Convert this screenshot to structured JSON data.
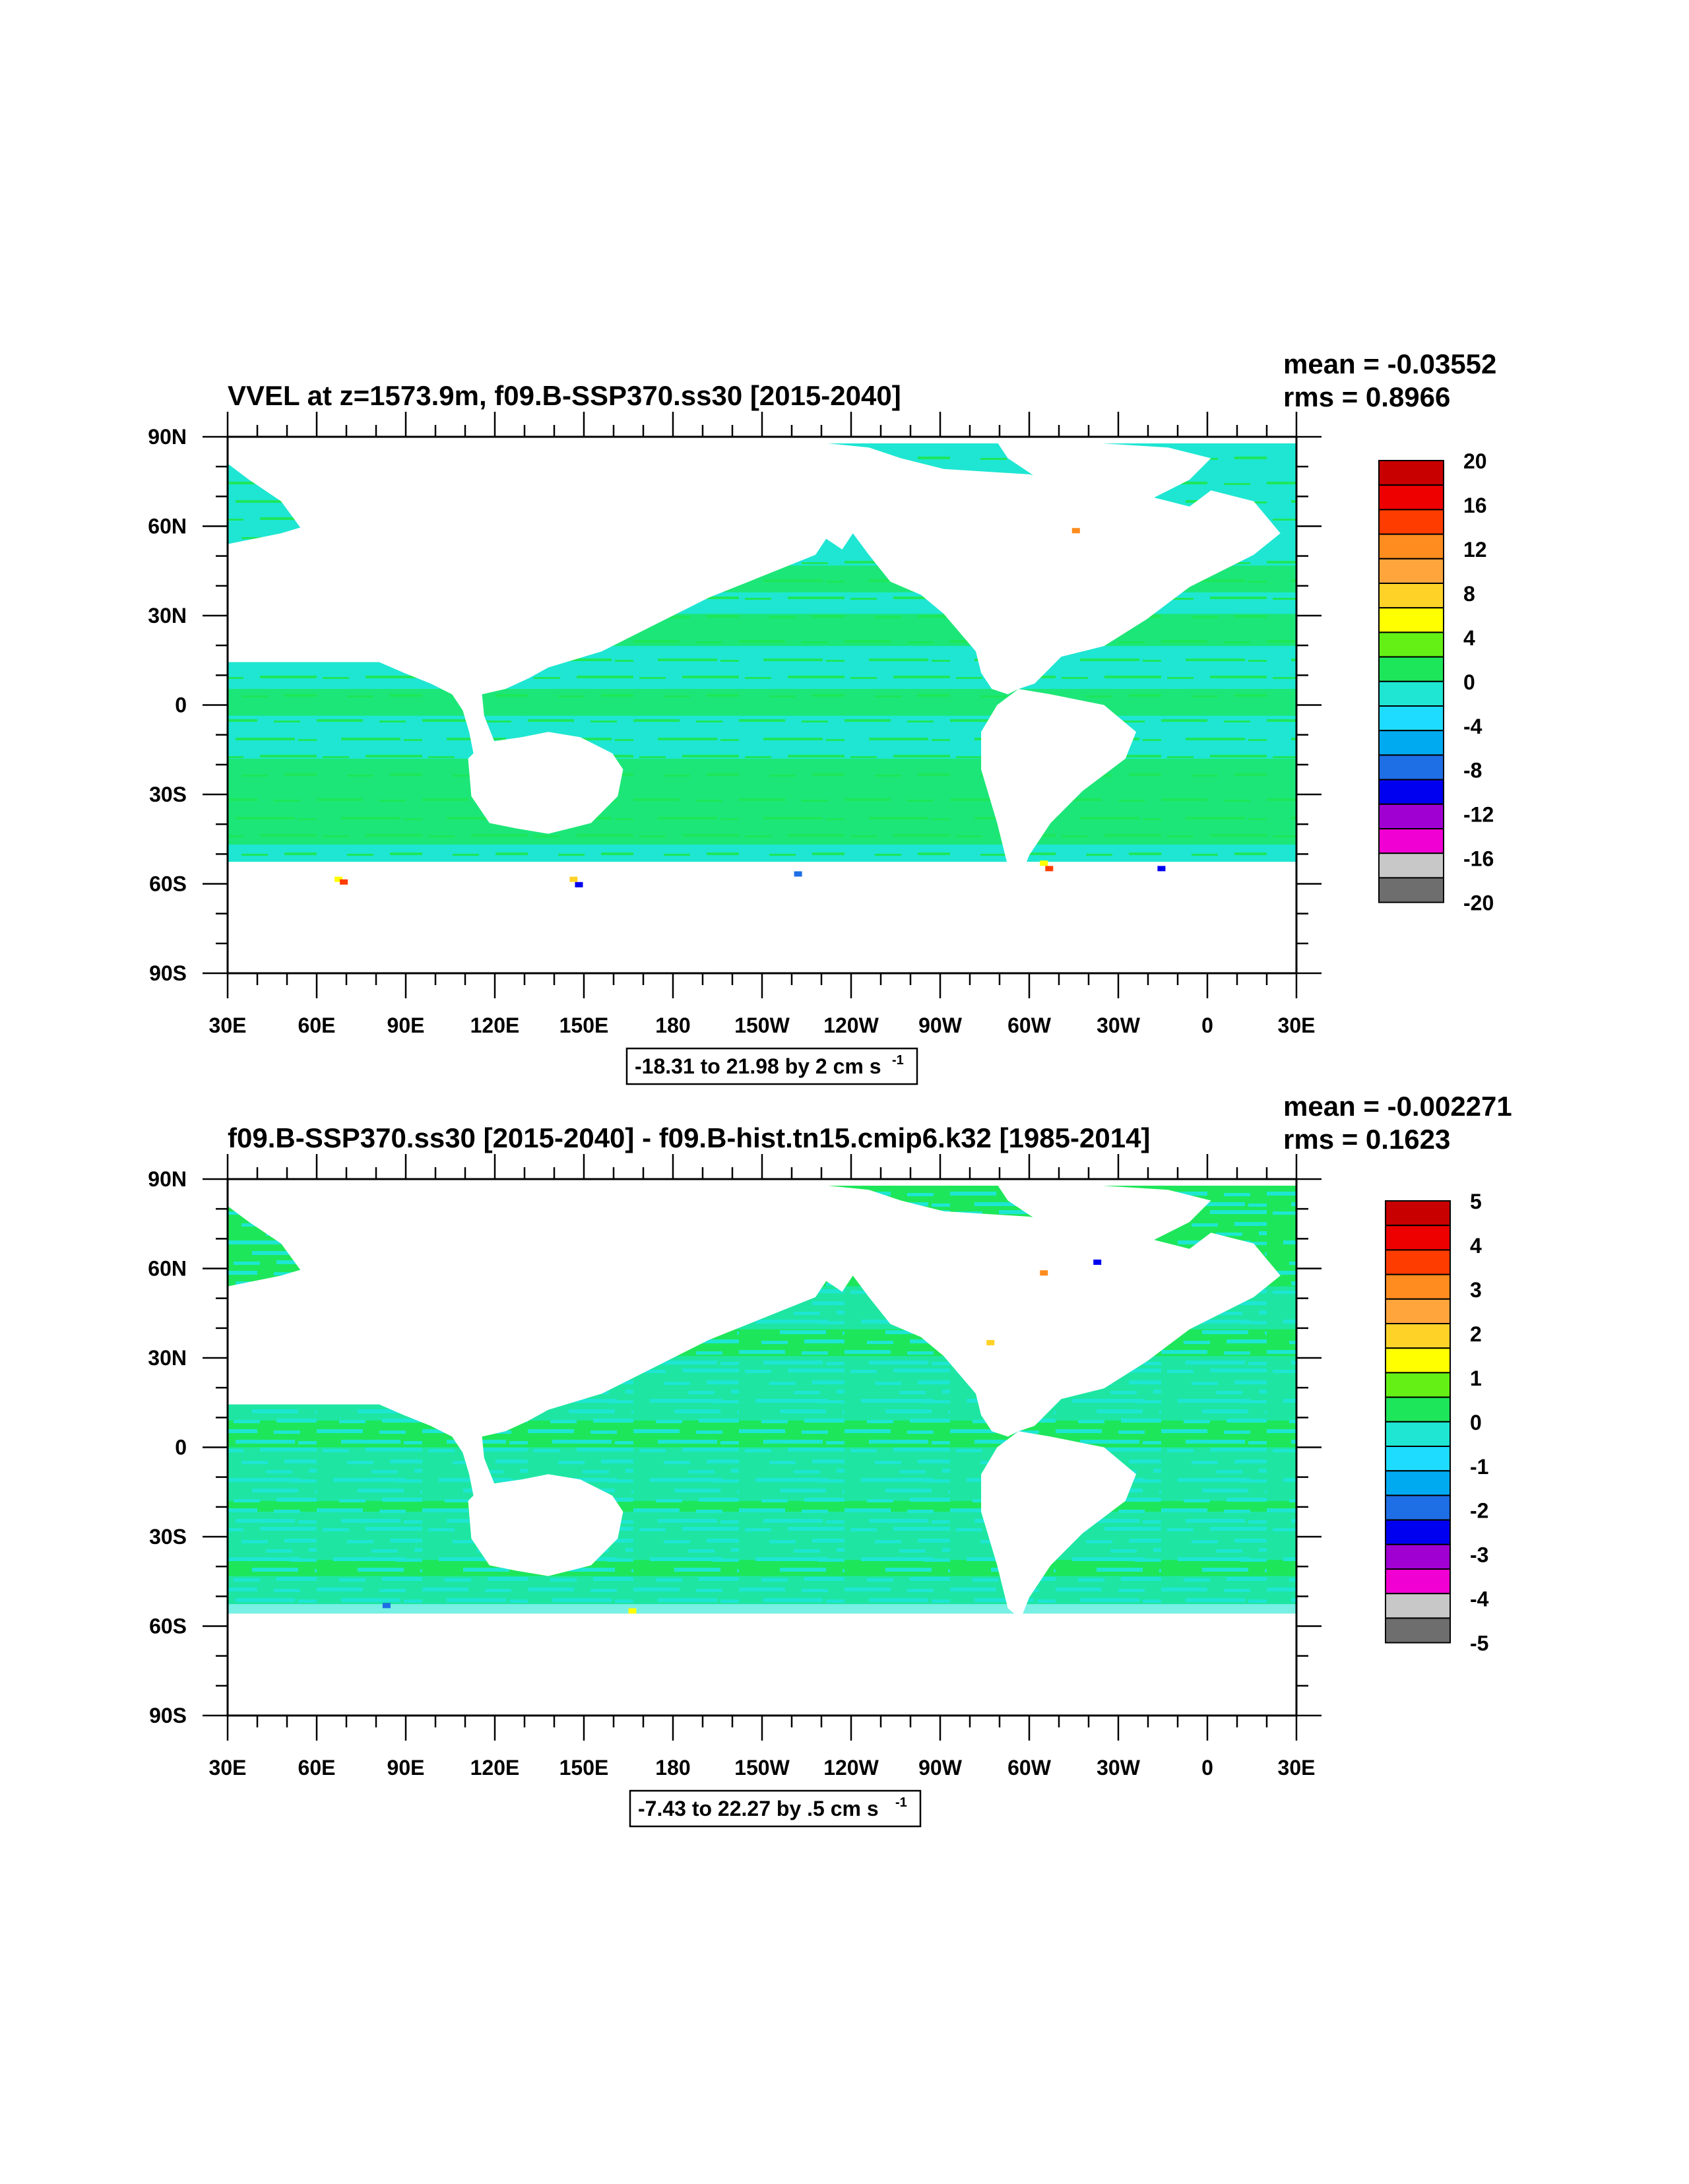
{
  "land_color": "#ffffff",
  "panels": [
    {
      "title": "VVEL at z=1573.9m, f09.B-SSP370.ss30 [2015-2040]",
      "mean_label": "mean = -0.03552",
      "rms_label": "rms = 0.8966",
      "range_text": "-18.31 to 21.98 by 2 cm s",
      "range_sup": "-1",
      "dominant_color": "#1ee6d2",
      "secondary_color": "#1ee65a",
      "colorbar": {
        "labels": [
          "20",
          "16",
          "12",
          "8",
          "4",
          "0",
          "-4",
          "-8",
          "-12",
          "-16",
          "-20"
        ]
      }
    },
    {
      "title": "f09.B-SSP370.ss30 [2015-2040] - f09.B-hist.tn15.cmip6.k32 [1985-2014]",
      "mean_label": "mean = -0.002271",
      "rms_label": "rms = 0.1623",
      "range_text": "-7.43 to 22.27 by .5 cm s",
      "range_sup": "-1",
      "dominant_color": "#1ee65a",
      "secondary_color": "#1ee6d2",
      "colorbar": {
        "labels": [
          "5",
          "4",
          "3",
          "2",
          "1",
          "0",
          "-1",
          "-2",
          "-3",
          "-4",
          "-5"
        ]
      }
    }
  ],
  "colorbar_colors": [
    "#c80000",
    "#ee0000",
    "#ff3c00",
    "#ff8c1e",
    "#ffa53c",
    "#ffd228",
    "#ffff00",
    "#64f014",
    "#1ee65a",
    "#1ee6d2",
    "#1edcff",
    "#00aaf0",
    "#1e6ee6",
    "#0000f0",
    "#a000d2",
    "#f000d2",
    "#c8c8c8",
    "#6e6e6e"
  ],
  "lat_ticks": [
    "90N",
    "60N",
    "30N",
    "0",
    "30S",
    "60S",
    "90S"
  ],
  "lon_ticks": [
    "30E",
    "60E",
    "90E",
    "120E",
    "150E",
    "180",
    "150W",
    "120W",
    "90W",
    "60W",
    "30W",
    "0",
    "30E"
  ]
}
